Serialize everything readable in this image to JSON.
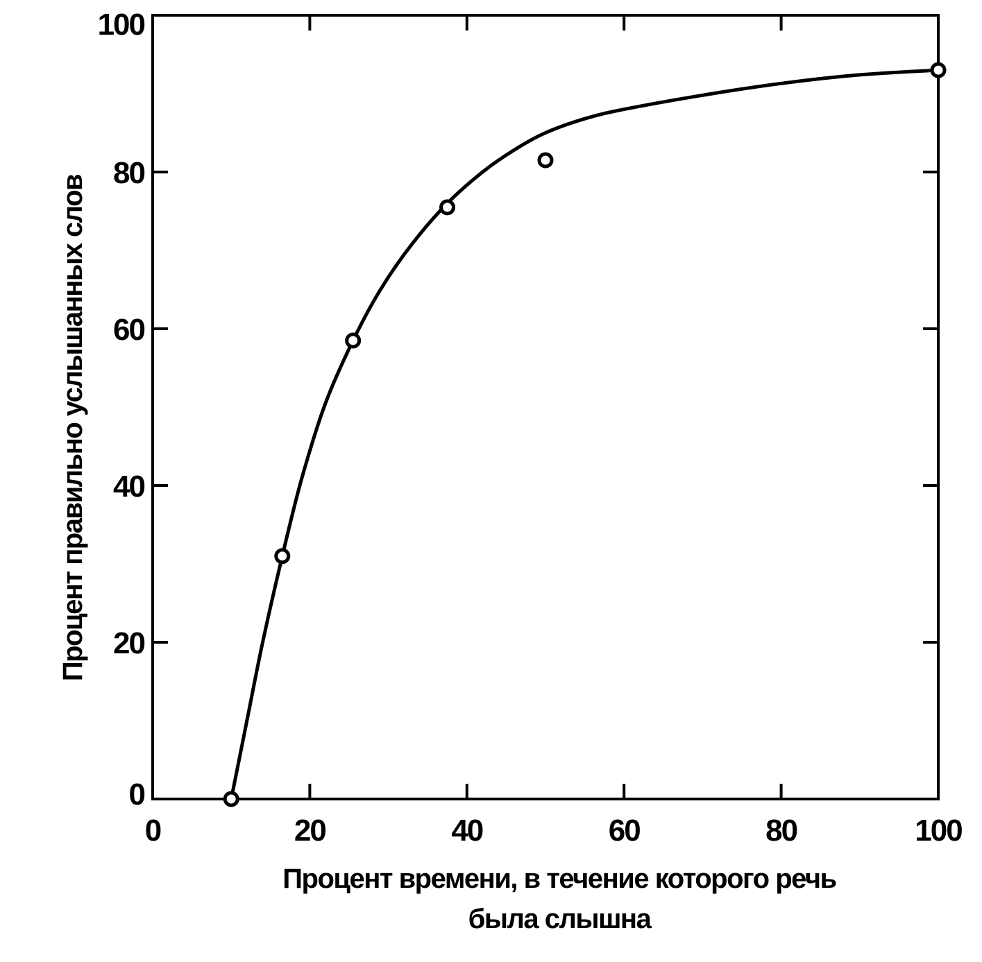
{
  "chart_data": {
    "type": "scatter",
    "title": "",
    "xlabel_lines": [
      "Процент времени, в течение которого речь",
      "была слышна"
    ],
    "ylabel": "Процент правильно услышанных слов",
    "xlim": [
      0,
      100
    ],
    "ylim": [
      0,
      100
    ],
    "x_ticks": [
      0,
      20,
      40,
      60,
      80,
      100
    ],
    "y_ticks": [
      0,
      20,
      40,
      60,
      80,
      100
    ],
    "x_tick_labels": [
      "0",
      "20",
      "40",
      "60",
      "80",
      "100"
    ],
    "y_tick_labels": [
      "0",
      "20",
      "40",
      "60",
      "80",
      "100"
    ],
    "grid": false,
    "mirrored_ticks": true,
    "series": [
      {
        "kind": "markers",
        "marker": "open-circle",
        "x": [
          10,
          16.5,
          25.5,
          37.5,
          50,
          100
        ],
        "y": [
          0,
          31,
          58.5,
          75.5,
          81.5,
          93
        ]
      },
      {
        "kind": "fitted-curve",
        "x": [
          10,
          12,
          14,
          16.5,
          19,
          22,
          25.5,
          29,
          33,
          37.5,
          42,
          46,
          50,
          55,
          60,
          70,
          80,
          90,
          100
        ],
        "y": [
          0,
          10,
          20,
          31,
          41,
          50.5,
          58.5,
          65,
          70.8,
          76,
          80,
          82.8,
          85,
          86.8,
          88,
          89.8,
          91.3,
          92.4,
          93
        ]
      }
    ],
    "colors": {
      "ink": "#000000",
      "background": "#ffffff"
    }
  }
}
